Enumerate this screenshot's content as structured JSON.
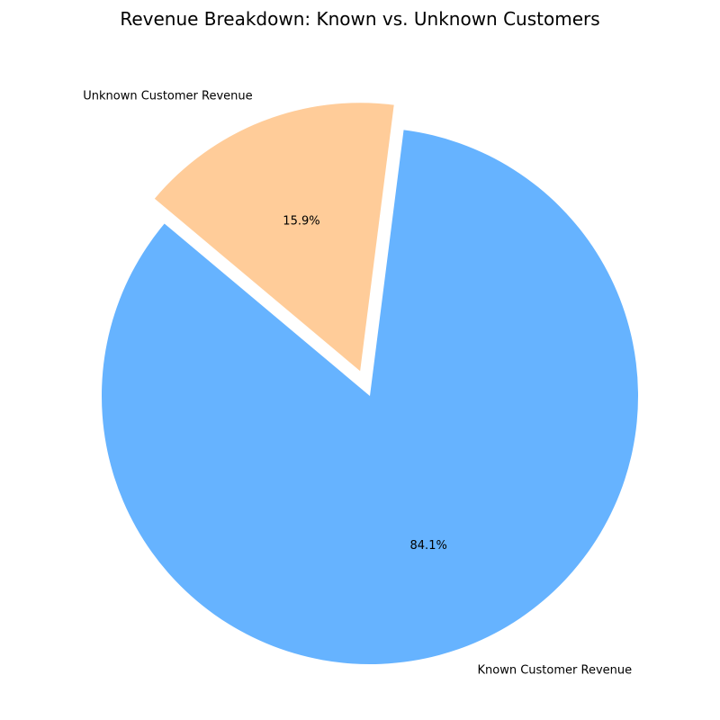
{
  "chart_data": {
    "type": "pie",
    "title": "Revenue Breakdown: Known vs. Unknown Customers",
    "start_angle_deg": 140,
    "counterclock": true,
    "slices": [
      {
        "label": "Known Customer Revenue",
        "value": 84.1,
        "pct_label": "84.1%",
        "color": "#66b3ff",
        "exploded": false
      },
      {
        "label": "Unknown Customer Revenue",
        "value": 15.9,
        "pct_label": "15.9%",
        "color": "#ffcc99",
        "exploded": true
      }
    ]
  }
}
